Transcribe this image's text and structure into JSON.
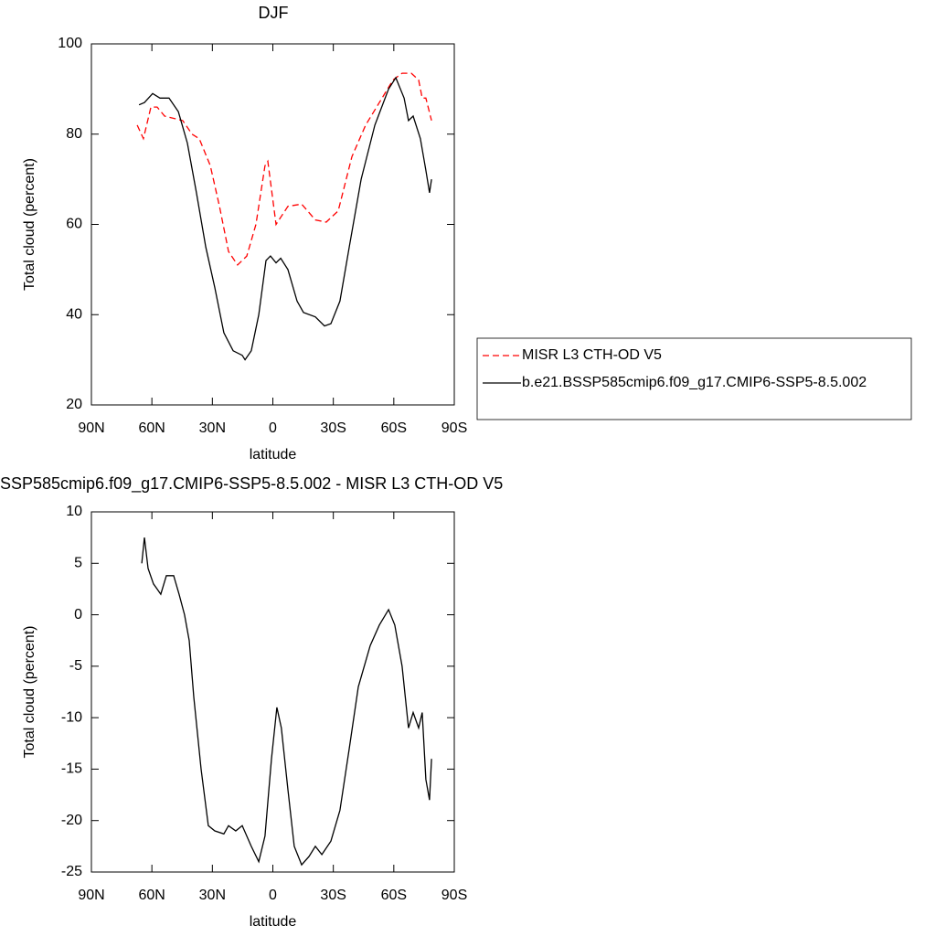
{
  "chart_data": [
    {
      "type": "line",
      "title": "DJF",
      "xlabel": "latitude",
      "ylabel": "Total cloud (percent)",
      "xlim": [
        90,
        -90
      ],
      "ylim": [
        20,
        100
      ],
      "xticks": [
        {
          "value": 90,
          "label": "90N"
        },
        {
          "value": 60,
          "label": "60N"
        },
        {
          "value": 30,
          "label": "30N"
        },
        0,
        {
          "value": -30,
          "label": "30S"
        },
        {
          "value": -60,
          "label": "60S"
        },
        {
          "value": -90,
          "label": "90S"
        }
      ],
      "yticks": [
        20,
        40,
        60,
        80,
        100
      ],
      "legend": "right",
      "series": [
        {
          "name": "MISR L3 CTH-OD V5",
          "color": "#ff0000",
          "dash": "dashed",
          "x": [
            67.3,
            64.2,
            60.5,
            57.4,
            53.7,
            44.7,
            40.1,
            36.5,
            31,
            26.5,
            22,
            17.5,
            12.9,
            8.4,
            3.9,
            2.5,
            -1.6,
            -7.5,
            -14.3,
            -21.1,
            -26.5,
            -32.4,
            -39.2,
            -46,
            -52.8,
            -59.6,
            -64.1,
            -68.7,
            -72.3,
            -74.1,
            -75.9,
            -78.7
          ],
          "values": [
            82,
            79,
            86,
            86,
            84,
            83,
            80,
            79,
            73,
            64,
            54,
            51,
            53,
            60,
            73,
            74,
            60,
            64,
            64.5,
            61,
            60.5,
            63,
            75,
            82,
            87,
            92,
            93.5,
            93.5,
            92,
            88,
            88,
            83
          ]
        },
        {
          "name": "b.e21.BSSP585cmip6.f09_g17.CMIP6-SSP5-8.5.002",
          "color": "#000000",
          "dash": "solid",
          "x": [
            66.4,
            63.7,
            59.6,
            56,
            51.5,
            46.9,
            42.4,
            37.9,
            33.3,
            28.8,
            24.3,
            19.7,
            15.2,
            13.8,
            10.7,
            7,
            3.4,
            1.2,
            -1.6,
            -3.9,
            -7.5,
            -12,
            -15.2,
            -21.1,
            -25.6,
            -28.8,
            -33.3,
            -37.9,
            -43.8,
            -50.6,
            -57.4,
            -61,
            -65.1,
            -67.3,
            -69.6,
            -73.2,
            -75.9,
            -77.7,
            -78.7
          ],
          "values": [
            86.5,
            87,
            89,
            88,
            88,
            85,
            78,
            67,
            55,
            46,
            36,
            32,
            31,
            30,
            32,
            40,
            52,
            53,
            51.5,
            52.5,
            50,
            43,
            40.5,
            39.5,
            37.5,
            38,
            43,
            55,
            70,
            82,
            90,
            92.5,
            88,
            83,
            84,
            79,
            72,
            67,
            70
          ]
        }
      ]
    },
    {
      "type": "line",
      "title": "SSP585cmip6.f09_g17.CMIP6-SSP5-8.5.002 - MISR L3 CTH-OD V5",
      "xlabel": "latitude",
      "ylabel": "Total cloud (percent)",
      "xlim": [
        90,
        -90
      ],
      "ylim": [
        -25,
        10
      ],
      "xticks": [
        {
          "value": 90,
          "label": "90N"
        },
        {
          "value": 60,
          "label": "60N"
        },
        {
          "value": 30,
          "label": "30N"
        },
        0,
        {
          "value": -30,
          "label": "30S"
        },
        {
          "value": -60,
          "label": "60S"
        },
        {
          "value": -90,
          "label": "90S"
        }
      ],
      "yticks": [
        -25,
        -20,
        -15,
        -10,
        -5,
        0,
        5,
        10
      ],
      "series": [
        {
          "color": "#000000",
          "dash": "solid",
          "x": [
            65,
            63.7,
            61.9,
            59.2,
            57.4,
            55.6,
            52.8,
            49.2,
            46.5,
            43.8,
            41.5,
            39.2,
            35.6,
            32,
            28.8,
            24.3,
            22,
            18.4,
            15.2,
            10.7,
            7,
            3.9,
            0.7,
            -2,
            -4.2,
            -7.5,
            -10.6,
            -14.3,
            -17.9,
            -21.1,
            -24.3,
            -28.8,
            -33.3,
            -37.9,
            -42.4,
            -48.3,
            -52.8,
            -57.4,
            -60.5,
            -64.1,
            -67.3,
            -69.6,
            -72.3,
            -74.1,
            -75.9,
            -77.7,
            -78.7
          ],
          "values": [
            5,
            7.5,
            4.5,
            3,
            2.5,
            2,
            3.8,
            3.8,
            2,
            0,
            -2.5,
            -8,
            -15,
            -20.5,
            -21,
            -21.3,
            -20.5,
            -21,
            -20.5,
            -22.5,
            -24,
            -21.5,
            -14,
            -9,
            -11,
            -17,
            -22.5,
            -24.3,
            -23.5,
            -22.5,
            -23.3,
            -22,
            -19,
            -13,
            -7,
            -3,
            -1,
            0.5,
            -1,
            -5,
            -11,
            -9.5,
            -11,
            -9.5,
            -16,
            -18,
            -14
          ]
        }
      ]
    }
  ]
}
